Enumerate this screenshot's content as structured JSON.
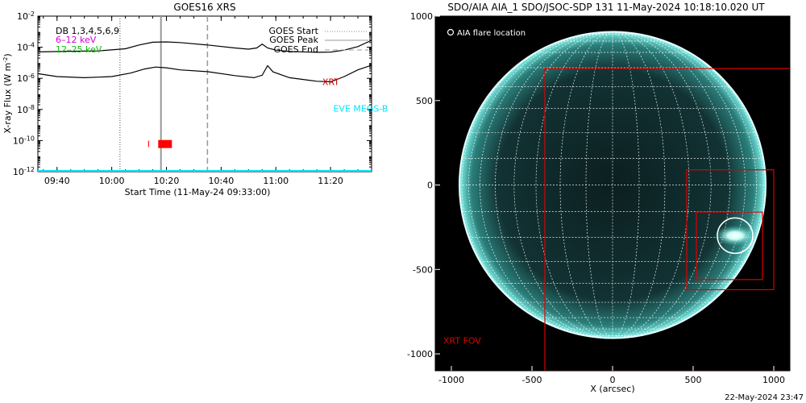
{
  "chart_data": [
    {
      "type": "line",
      "title": "GOES16 XRS",
      "xlabel": "Start Time (11-May-24 09:33:00)",
      "ylabel": "X-ray Flux (W m^-2)",
      "y_scale": "log",
      "ylim": [
        1e-12,
        0.01
      ],
      "xlim": [
        "09:33",
        "11:35"
      ],
      "x_ticks": [
        "09:40",
        "10:00",
        "10:20",
        "10:40",
        "11:00",
        "11:20"
      ],
      "y_ticks": [
        "10^-12",
        "10^-10",
        "10^-8",
        "10^-6",
        "10^-4",
        "10^-2"
      ],
      "legend": {
        "placement": "top-left",
        "entries": [
          {
            "label": "DB 1,3,4,5,6,9",
            "color": "#000000"
          },
          {
            "label": "6–12 keV",
            "color": "#d400d4"
          },
          {
            "label": "12–25 keV",
            "color": "#00c000"
          }
        ]
      },
      "markers_legend": {
        "placement": "top-right",
        "entries": [
          "GOES Start",
          "GOES Peak",
          "GOES End"
        ]
      },
      "vlines": [
        {
          "name": "GOES Start",
          "x": "10:03",
          "style": "dotted",
          "color": "#888888"
        },
        {
          "name": "GOES Peak",
          "x": "10:18",
          "style": "solid",
          "color": "#999999"
        },
        {
          "name": "GOES End",
          "x": "10:35",
          "style": "dashed",
          "color": "#999999"
        }
      ],
      "series": [
        {
          "name": "long channel",
          "color": "#000000",
          "points": [
            [
              "09:33",
              5e-05
            ],
            [
              "09:45",
              5.5e-05
            ],
            [
              "09:55",
              5.8e-05
            ],
            [
              "10:05",
              8e-05
            ],
            [
              "10:10",
              0.00014
            ],
            [
              "10:15",
              0.00021
            ],
            [
              "10:20",
              0.00022
            ],
            [
              "10:25",
              0.0002
            ],
            [
              "10:35",
              0.00014
            ],
            [
              "10:45",
              9e-05
            ],
            [
              "10:50",
              7.5e-05
            ],
            [
              "10:53",
              9e-05
            ],
            [
              "10:55",
              0.00016
            ],
            [
              "10:57",
              9e-05
            ],
            [
              "11:00",
              6.5e-05
            ],
            [
              "11:05",
              5.3e-05
            ],
            [
              "11:15",
              4.7e-05
            ],
            [
              "11:20",
              4.9e-05
            ],
            [
              "11:25",
              6.5e-05
            ],
            [
              "11:30",
              0.00011
            ],
            [
              "11:35",
              0.00028
            ]
          ]
        },
        {
          "name": "short channel",
          "color": "#000000",
          "points": [
            [
              "09:33",
              2e-06
            ],
            [
              "09:40",
              1.3e-06
            ],
            [
              "09:50",
              1.1e-06
            ],
            [
              "10:00",
              1.3e-06
            ],
            [
              "10:07",
              2.2e-06
            ],
            [
              "10:12",
              4e-06
            ],
            [
              "10:16",
              5.3e-06
            ],
            [
              "10:20",
              4.8e-06
            ],
            [
              "10:25",
              3.5e-06
            ],
            [
              "10:35",
              2.7e-06
            ],
            [
              "10:45",
              1.5e-06
            ],
            [
              "10:52",
              1.1e-06
            ],
            [
              "10:55",
              1.6e-06
            ],
            [
              "10:57",
              6.5e-06
            ],
            [
              "10:59",
              2.6e-06
            ],
            [
              "11:05",
              1.1e-06
            ],
            [
              "11:15",
              6.5e-07
            ],
            [
              "11:20",
              6e-07
            ],
            [
              "11:25",
              1.3e-06
            ],
            [
              "11:30",
              3.5e-06
            ],
            [
              "11:35",
              7e-06
            ]
          ]
        },
        {
          "name": "EVE MEGS-B",
          "color": "#00e5ff",
          "points": [
            [
              "09:33",
              1.1e-12
            ],
            [
              "11:35",
              1.1e-12
            ]
          ]
        }
      ],
      "annotations": [
        {
          "text": "XRT",
          "x": "11:17",
          "y": 6e-07,
          "color": "#cc0000"
        },
        {
          "text": "EVE MEGS-B",
          "x": "11:21",
          "y": 1.2e-08,
          "color": "#00e5ff"
        },
        {
          "text": "I",
          "x": "10:13",
          "y": 6e-11,
          "color": "#ff0000"
        }
      ],
      "xrt_coverage": {
        "start": "10:17",
        "end": "10:22",
        "y": 6e-11,
        "color": "#ff0000"
      }
    },
    {
      "type": "scatter",
      "title": "SDO/AIA AIA_1 SDO/JSOC-SDP 131 11-May-2024 10:18:10.020 UT",
      "xlabel": "X (arcsec)",
      "ylabel": "",
      "xlim": [
        -1100,
        1100
      ],
      "ylim": [
        -1100,
        1000
      ],
      "x_ticks": [
        -1000,
        -500,
        0,
        500,
        1000
      ],
      "y_ticks": [
        1000,
        500,
        0,
        -500,
        -1000
      ],
      "solar_radius_arcsec": 950,
      "grid": true,
      "legend": {
        "placement": "top-left",
        "entries": [
          {
            "label": "AIA flare location",
            "symbol": "circle",
            "color": "#ffffff"
          }
        ]
      },
      "flare_location": {
        "x": 760,
        "y": -300,
        "radius": 110
      },
      "fov_boxes": [
        {
          "name": "XRT FOV",
          "x0": -420,
          "x1": 1100,
          "y0": -1100,
          "y1": 690,
          "color": "#dd0000"
        },
        {
          "name": "box outer",
          "x0": 460,
          "x1": 1000,
          "y0": -620,
          "y1": 90,
          "color": "#dd0000"
        },
        {
          "name": "box inner",
          "x0": 520,
          "x1": 930,
          "y0": -560,
          "y1": -160,
          "color": "#dd0000"
        }
      ],
      "annotations": [
        {
          "text": "XRT FOV",
          "x": -1050,
          "y": -940,
          "color": "#dd0000"
        }
      ]
    }
  ],
  "footer": {
    "timestamp": "22-May-2024 23:47"
  }
}
